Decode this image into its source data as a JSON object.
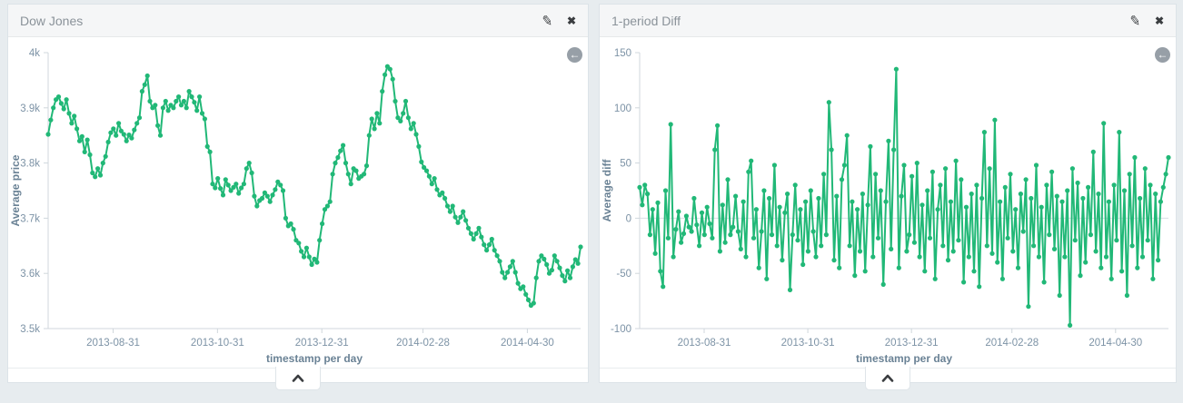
{
  "colors": {
    "line": "#21b877",
    "axis_line": "#d0d7dc",
    "grid_line": "#d9dfe4",
    "tick_label": "#7d93a6",
    "axis_title": "#6a8295",
    "panel_title": "#8a9299",
    "icon": "#3a3d40",
    "back_button": "#979fa7",
    "panel_bg": "#ffffff",
    "header_bg": "#f5f6f7",
    "page_bg": "#e7ecef"
  },
  "icons": {
    "edit": "✎",
    "close": "✖",
    "back": "←"
  },
  "panels": [
    {
      "title": "Dow Jones"
    },
    {
      "title": "1-period Diff"
    }
  ],
  "chart_data": [
    {
      "type": "line",
      "title": "Dow Jones",
      "xlabel": "timestamp per day",
      "ylabel": "Average price",
      "ylim": [
        3500,
        4000
      ],
      "grid": "zero-line-only",
      "legend": "none",
      "x_range": [
        "2013-07-24",
        "2014-05-31"
      ],
      "yticks": [
        {
          "v": 3500,
          "label": "3.5k"
        },
        {
          "v": 3600,
          "label": "3.6k"
        },
        {
          "v": 3700,
          "label": "3.7k"
        },
        {
          "v": 3800,
          "label": "3.8k"
        },
        {
          "v": 3900,
          "label": "3.9k"
        },
        {
          "v": 4000,
          "label": "4k"
        }
      ],
      "xticks": [
        {
          "f": 0.122,
          "label": "2013-08-31"
        },
        {
          "f": 0.318,
          "label": "2013-10-31"
        },
        {
          "f": 0.514,
          "label": "2013-12-31"
        },
        {
          "f": 0.704,
          "label": "2014-02-28"
        },
        {
          "f": 0.9,
          "label": "2014-04-30"
        }
      ],
      "values": [
        3852,
        3878,
        3900,
        3915,
        3920,
        3908,
        3898,
        3915,
        3890,
        3872,
        3885,
        3862,
        3840,
        3848,
        3820,
        3842,
        3815,
        3782,
        3775,
        3790,
        3778,
        3800,
        3812,
        3838,
        3855,
        3862,
        3850,
        3872,
        3858,
        3852,
        3840,
        3851,
        3845,
        3860,
        3872,
        3882,
        3930,
        3942,
        3958,
        3912,
        3900,
        3905,
        3868,
        3850,
        3900,
        3912,
        3895,
        3905,
        3900,
        3912,
        3920,
        3905,
        3912,
        3900,
        3930,
        3920,
        3910,
        3895,
        3920,
        3890,
        3880,
        3830,
        3820,
        3762,
        3755,
        3772,
        3754,
        3742,
        3770,
        3760,
        3750,
        3756,
        3762,
        3745,
        3755,
        3762,
        3790,
        3800,
        3782,
        3740,
        3722,
        3732,
        3736,
        3746,
        3740,
        3730,
        3742,
        3752,
        3766,
        3760,
        3750,
        3700,
        3686,
        3690,
        3680,
        3660,
        3655,
        3640,
        3630,
        3646,
        3630,
        3616,
        3626,
        3620,
        3660,
        3690,
        3716,
        3722,
        3730,
        3780,
        3800,
        3810,
        3822,
        3832,
        3800,
        3780,
        3762,
        3790,
        3786,
        3772,
        3776,
        3780,
        3795,
        3850,
        3880,
        3862,
        3890,
        3872,
        3930,
        3960,
        3975,
        3970,
        3952,
        3912,
        3882,
        3876,
        3890,
        3912,
        3882,
        3862,
        3872,
        3852,
        3830,
        3802,
        3792,
        3786,
        3776,
        3762,
        3772,
        3752,
        3742,
        3746,
        3736,
        3722,
        3712,
        3722,
        3702,
        3692,
        3702,
        3712,
        3696,
        3682,
        3672,
        3662,
        3672,
        3682,
        3666,
        3652,
        3642,
        3652,
        3662,
        3642,
        3632,
        3622,
        3602,
        3592,
        3602,
        3612,
        3622,
        3602,
        3582,
        3572,
        3576,
        3562,
        3552,
        3542,
        3546,
        3592,
        3622,
        3632,
        3626,
        3616,
        3600,
        3606,
        3632,
        3622,
        3610,
        3596,
        3586,
        3605,
        3592,
        3612,
        3625,
        3618,
        3648
      ]
    },
    {
      "type": "line",
      "title": "1-period Diff",
      "xlabel": "timestamp per day",
      "ylabel": "Average diff",
      "ylim": [
        -100,
        150
      ],
      "grid": "zero-line-only",
      "legend": "none",
      "x_range": [
        "2013-07-24",
        "2014-05-31"
      ],
      "yticks": [
        {
          "v": -100,
          "label": "-100"
        },
        {
          "v": -50,
          "label": "-50"
        },
        {
          "v": 0,
          "label": "0"
        },
        {
          "v": 50,
          "label": "50"
        },
        {
          "v": 100,
          "label": "100"
        },
        {
          "v": 150,
          "label": "150"
        }
      ],
      "xticks": [
        {
          "f": 0.122,
          "label": "2013-08-31"
        },
        {
          "f": 0.318,
          "label": "2013-10-31"
        },
        {
          "f": 0.514,
          "label": "2013-12-31"
        },
        {
          "f": 0.704,
          "label": "2014-02-28"
        },
        {
          "f": 0.9,
          "label": "2014-04-30"
        }
      ],
      "values": [
        28,
        12,
        30,
        22,
        -15,
        8,
        -32,
        14,
        -48,
        -62,
        25,
        -18,
        85,
        -35,
        -10,
        6,
        -22,
        -14,
        2,
        -8,
        -12,
        18,
        -6,
        -25,
        5,
        -15,
        10,
        -5,
        -18,
        62,
        84,
        -30,
        12,
        -22,
        35,
        -15,
        -8,
        20,
        -12,
        -28,
        15,
        -35,
        42,
        52,
        -18,
        8,
        -45,
        -12,
        25,
        -55,
        18,
        -15,
        48,
        -25,
        10,
        -38,
        5,
        22,
        -65,
        -15,
        30,
        -20,
        8,
        -42,
        15,
        -30,
        25,
        -12,
        -35,
        18,
        -25,
        40,
        -15,
        105,
        62,
        -38,
        20,
        -45,
        35,
        48,
        75,
        -25,
        15,
        -52,
        8,
        -30,
        22,
        -48,
        12,
        65,
        -35,
        40,
        -18,
        25,
        -60,
        15,
        70,
        -28,
        62,
        135,
        -45,
        20,
        48,
        -30,
        -15,
        38,
        -22,
        50,
        -35,
        12,
        -48,
        25,
        -18,
        42,
        -55,
        8,
        30,
        -25,
        45,
        -38,
        15,
        -30,
        52,
        -20,
        35,
        -58,
        10,
        -35,
        22,
        -48,
        30,
        -62,
        18,
        78,
        -25,
        45,
        -32,
        89,
        -40,
        15,
        -55,
        28,
        -18,
        40,
        -30,
        8,
        -45,
        22,
        -12,
        35,
        -80,
        18,
        -25,
        48,
        -35,
        10,
        -58,
        30,
        -15,
        42,
        -28,
        20,
        -70,
        15,
        -35,
        25,
        -97,
        45,
        -20,
        32,
        -52,
        18,
        -40,
        28,
        -15,
        60,
        -30,
        22,
        -45,
        86,
        -35,
        15,
        -55,
        30,
        -20,
        78,
        -48,
        25,
        -70,
        40,
        -25,
        55,
        -45,
        18,
        -35,
        45,
        -20,
        30,
        -55,
        22,
        -38,
        15,
        28,
        40,
        55
      ]
    }
  ]
}
